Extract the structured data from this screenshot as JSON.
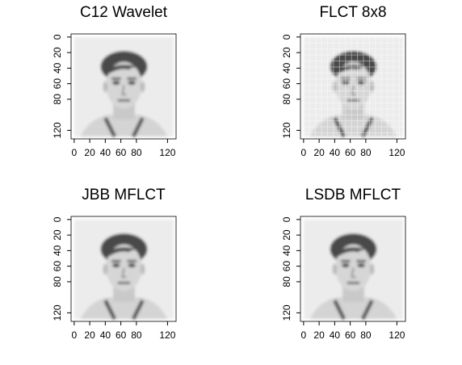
{
  "chart_data": [
    {
      "type": "image",
      "title": "C12 Wavelet",
      "xlim": [
        -4,
        131
      ],
      "ylim": [
        131,
        -4
      ],
      "xticks": [
        0,
        20,
        40,
        60,
        80,
        120
      ],
      "yticks": [
        0,
        20,
        40,
        60,
        80,
        120
      ]
    },
    {
      "type": "image",
      "title": "FLCT 8x8",
      "xlim": [
        -4,
        131
      ],
      "ylim": [
        131,
        -4
      ],
      "xticks": [
        0,
        20,
        40,
        60,
        80,
        120
      ],
      "yticks": [
        0,
        20,
        40,
        60,
        80,
        120
      ]
    },
    {
      "type": "image",
      "title": "JBB MFLCT",
      "xlim": [
        -4,
        131
      ],
      "ylim": [
        131,
        -4
      ],
      "xticks": [
        0,
        20,
        40,
        60,
        80,
        120
      ],
      "yticks": [
        0,
        20,
        40,
        60,
        80,
        120
      ]
    },
    {
      "type": "image",
      "title": "LSDB MFLCT",
      "xlim": [
        -4,
        131
      ],
      "ylim": [
        131,
        -4
      ],
      "xticks": [
        0,
        20,
        40,
        60,
        80,
        120
      ],
      "yticks": [
        0,
        20,
        40,
        60,
        80,
        120
      ]
    }
  ]
}
